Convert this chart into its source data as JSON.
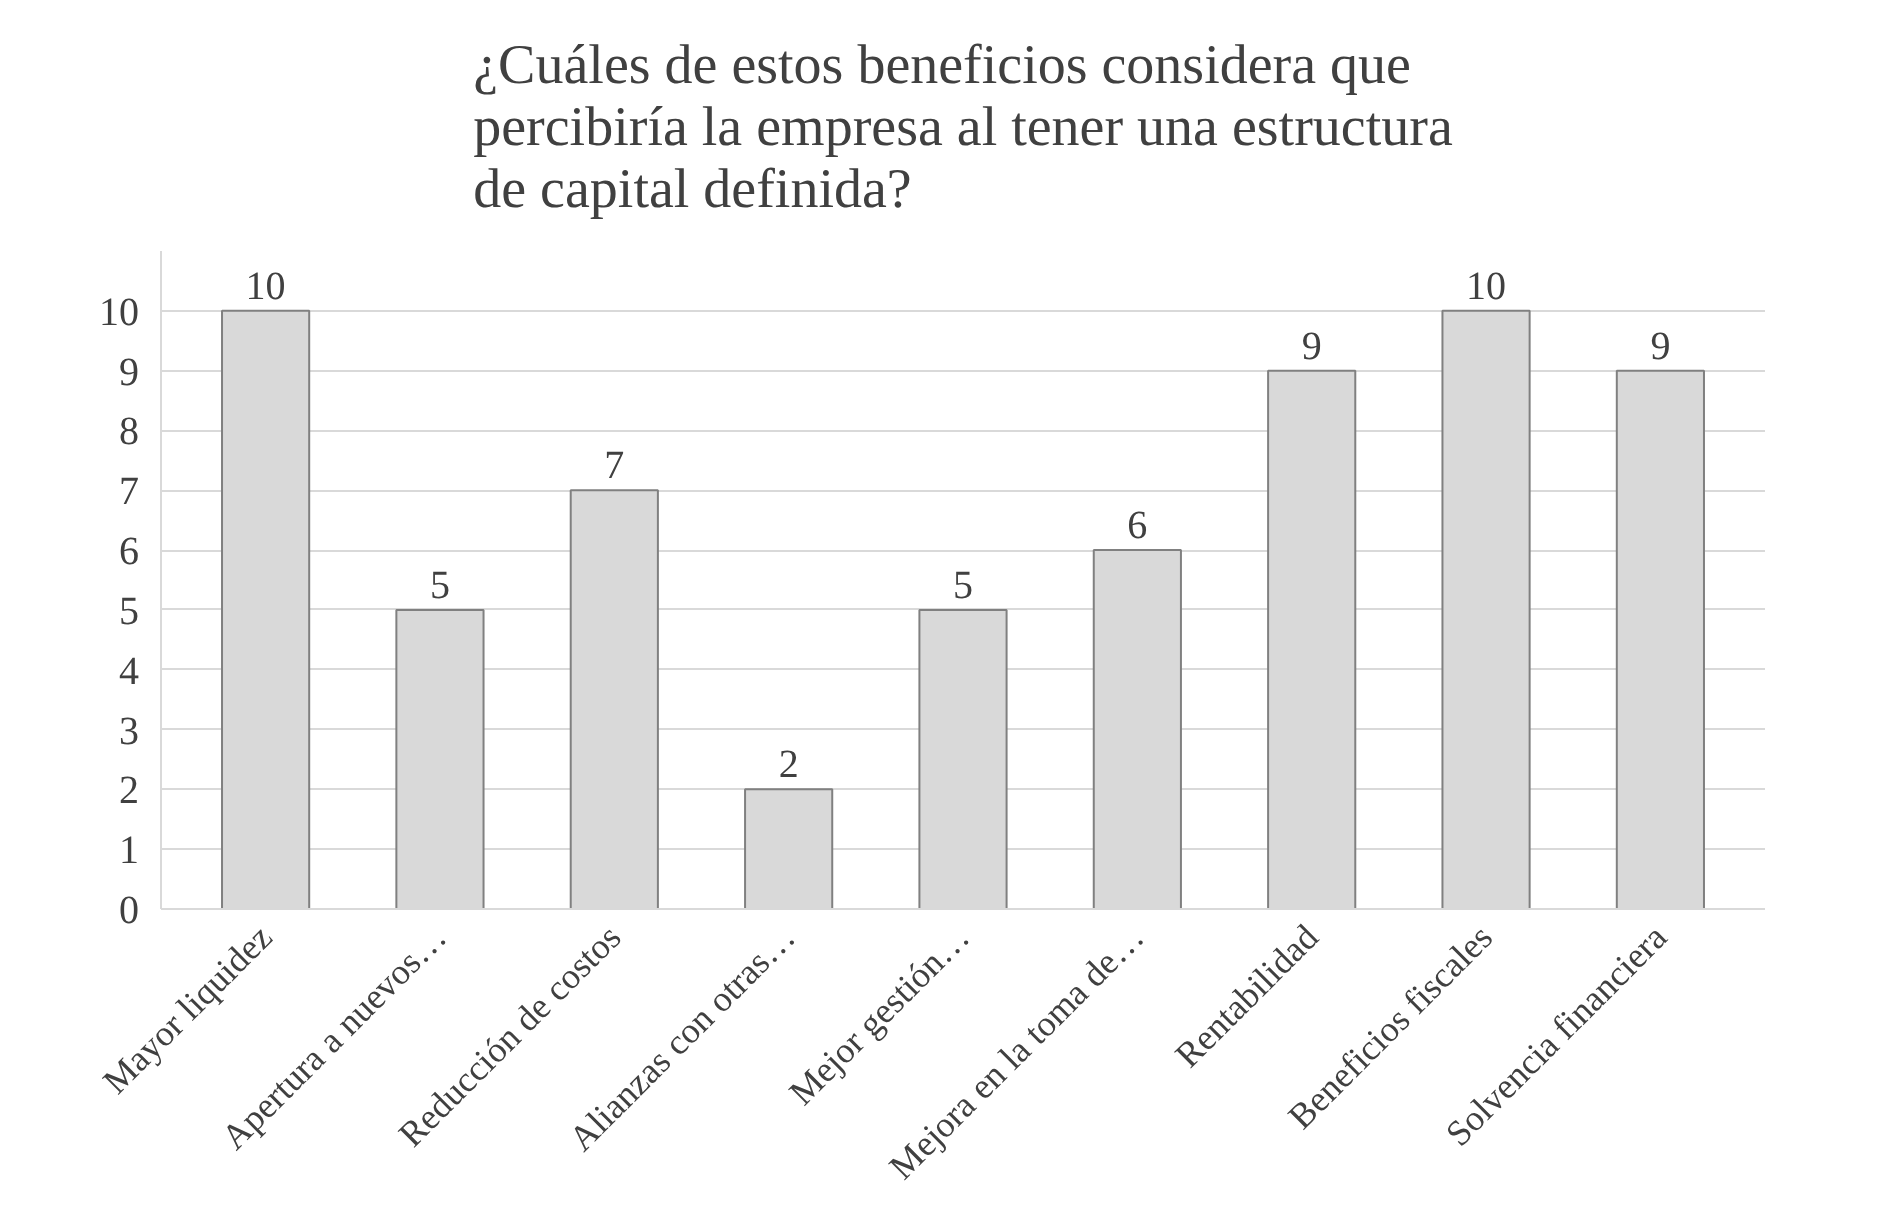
{
  "chart_data": {
    "type": "bar",
    "title": "¿Cuáles de estos beneficios considera que percibiría la empresa al tener una estructura de capital definida?",
    "categories": [
      "Mayor liquidez",
      "Apertura a nuevos…",
      "Reducción de costos",
      "Alianzas con otras…",
      "Mejor gestión…",
      "Mejora en la toma de…",
      "Rentabilidad",
      "Beneficios fiscales",
      "Solvencia financiera"
    ],
    "values": [
      10,
      5,
      7,
      2,
      5,
      6,
      9,
      10,
      9
    ],
    "color": "#d9d9d9",
    "ylim": [
      0,
      11
    ],
    "yticks": [
      0,
      1,
      2,
      3,
      4,
      5,
      6,
      7,
      8,
      9,
      10
    ],
    "grid": "y",
    "data_labels": true
  }
}
